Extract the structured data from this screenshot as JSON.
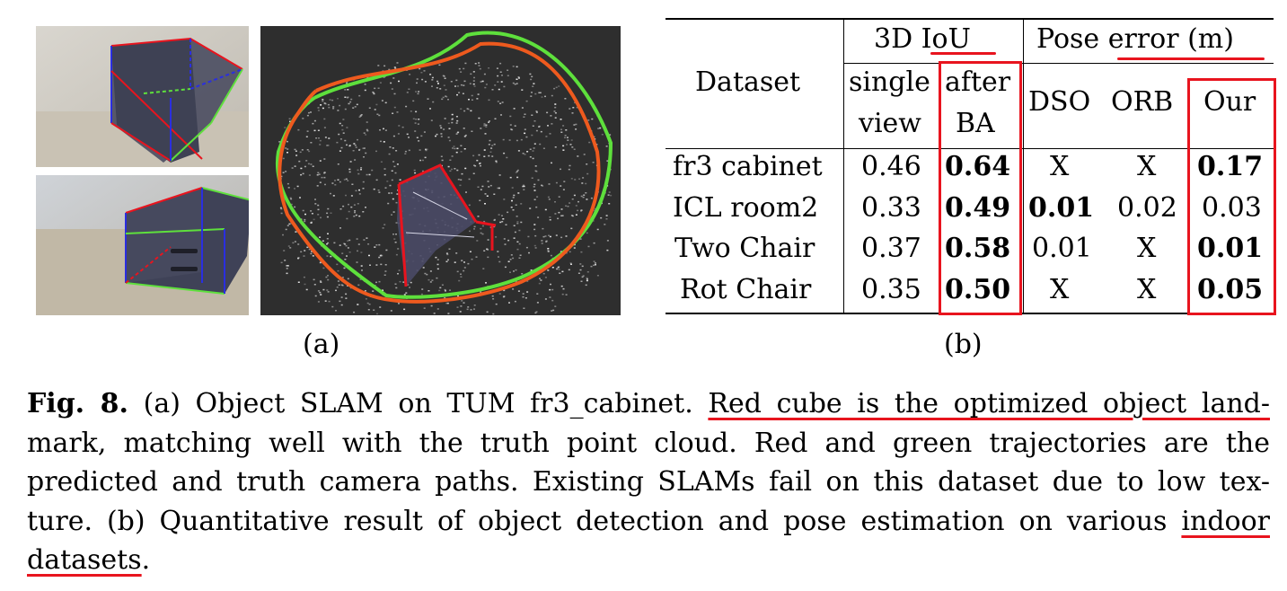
{
  "figure": {
    "panel_a_label": "(a)",
    "panel_b_label": "(b)"
  },
  "table": {
    "header": {
      "dataset": "Dataset",
      "iou_group": "3D IoU",
      "pose_group": "Pose error (m)",
      "single_view_1": "single",
      "single_view_2": "view",
      "after_ba_1": "after",
      "after_ba_2": "BA",
      "dso": "DSO",
      "orb": "ORB",
      "our": "Our"
    },
    "rows": [
      {
        "dataset": "fr3 cabinet",
        "single": "0.46",
        "after": "0.64",
        "dso": "X",
        "orb": "X",
        "our": "0.17"
      },
      {
        "dataset": "ICL room2",
        "single": "0.33",
        "after": "0.49",
        "dso": "0.01",
        "orb": "0.02",
        "our": "0.03"
      },
      {
        "dataset": "Two Chair",
        "single": "0.37",
        "after": "0.58",
        "dso": "0.01",
        "orb": "X",
        "our": "0.01"
      },
      {
        "dataset": "Rot Chair",
        "single": "0.35",
        "after": "0.50",
        "dso": "X",
        "orb": "X",
        "our": "0.05"
      }
    ]
  },
  "caption": {
    "fig_label": "Fig. 8.",
    "line1_a": "(a) Object SLAM on TUM fr3_cabinet.",
    "line1_b": "Red cube is the optimized object land-",
    "line2": "mark, matching well with the truth point cloud. Red and green trajectories are the",
    "line3": "predicted and truth camera paths. Existing SLAMs fail on this dataset due to low tex-",
    "line4_a": "ture. (b) Quantitative result of object detection and pose estimation on various",
    "line4_b": "indoor",
    "line5": "datasets",
    "line5_end": "."
  },
  "colors": {
    "highlight_red": "#e8141e",
    "trajectory_red": "#ee5a1e",
    "trajectory_green": "#5ee03c",
    "cube_blue": "#2a2ee0"
  }
}
